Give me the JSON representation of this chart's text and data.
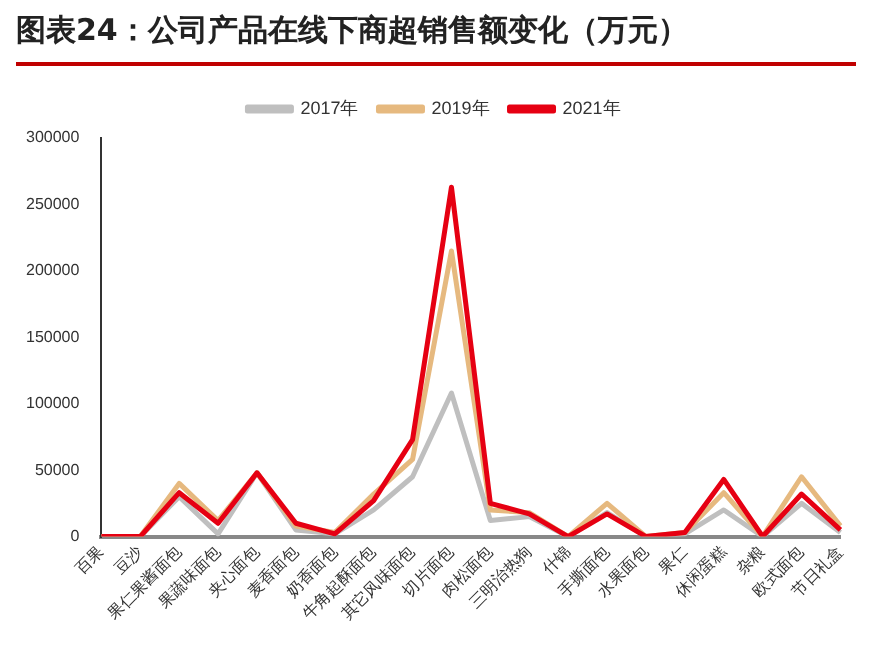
{
  "chart_data": {
    "type": "line",
    "title": "图表24：公司产品在线下商超销售额变化（万元）",
    "categories": [
      "百果",
      "豆沙",
      "果仁果酱面包",
      "果蔬味面包",
      "夹心面包",
      "麦香面包",
      "奶香面包",
      "牛角起酥面包",
      "其它风味面包",
      "切片面包",
      "肉松面包",
      "三明治热狗",
      "什锦",
      "手撕面包",
      "水果面包",
      "果仁",
      "休闲蛋糕",
      "杂粮",
      "欧式面包",
      "节日礼盒"
    ],
    "series": [
      {
        "name": "2017年",
        "color": "#bfbfbf",
        "values": [
          0,
          0,
          30000,
          2000,
          48000,
          5000,
          2000,
          20000,
          45000,
          108000,
          12000,
          15000,
          0,
          18000,
          0,
          2000,
          20000,
          0,
          25000,
          3000
        ]
      },
      {
        "name": "2019年",
        "color": "#e6b97f",
        "values": [
          0,
          0,
          40000,
          12000,
          48000,
          8000,
          3000,
          32000,
          58000,
          215000,
          20000,
          18000,
          0,
          25000,
          0,
          3000,
          33000,
          0,
          45000,
          8000
        ]
      },
      {
        "name": "2021年",
        "color": "#e60012",
        "values": [
          0,
          0,
          33000,
          10000,
          48000,
          10000,
          2000,
          27000,
          73000,
          263000,
          25000,
          17000,
          0,
          17000,
          0,
          3000,
          43000,
          0,
          32000,
          5000
        ]
      }
    ],
    "ylim": [
      0,
      300000
    ],
    "yticks": [
      0,
      50000,
      100000,
      150000,
      200000,
      250000,
      300000
    ],
    "grid": false,
    "legend": "top",
    "marker": "none",
    "line_style": "solid"
  }
}
